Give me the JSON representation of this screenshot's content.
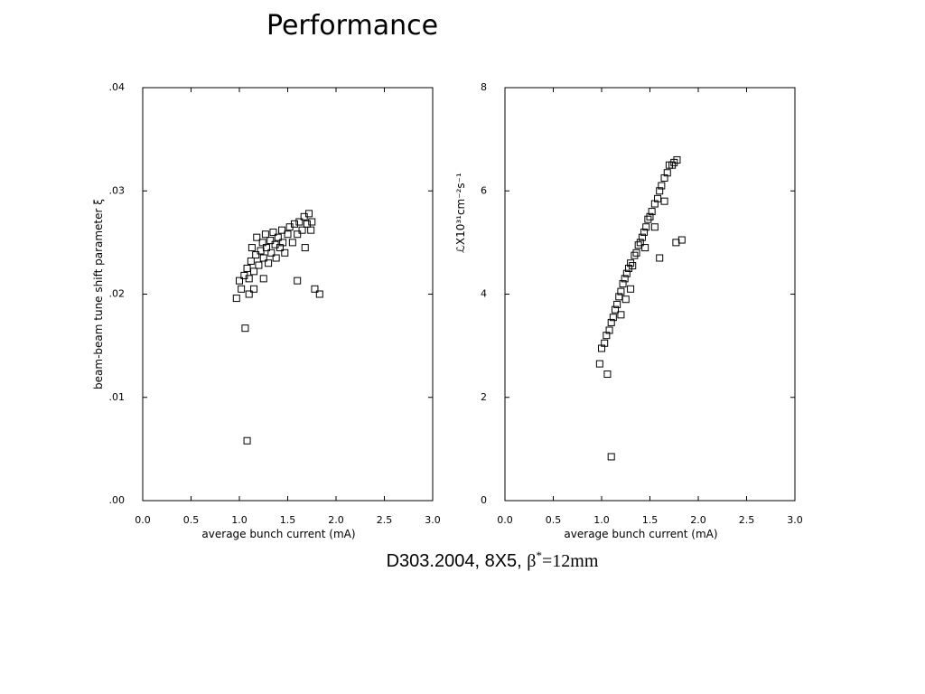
{
  "title": "Performance",
  "caption": {
    "text": "D303.2004, 8X5, ",
    "symbol": "β",
    "sup": "*",
    "rest": "=12mm"
  },
  "chart_data": [
    {
      "type": "scatter",
      "xlabel": "average bunch current (mA)",
      "ylabel": "beam-beam tune shift parameter ξ",
      "xlim": [
        0,
        3
      ],
      "ylim": [
        0,
        0.04
      ],
      "xticks": [
        {
          "value": 0,
          "label": "0.0"
        },
        0.5,
        {
          "value": 1,
          "label": "1.0"
        },
        1.5,
        {
          "value": 2,
          "label": "2.0"
        },
        2.5,
        {
          "value": 3,
          "label": "3.0"
        }
      ],
      "yticks": [
        {
          "value": 0,
          "label": ".00"
        },
        {
          "value": 0.01,
          "label": ".01"
        },
        {
          "value": 0.02,
          "label": ".02"
        },
        {
          "value": 0.03,
          "label": ".03"
        },
        {
          "value": 0.04,
          "label": ".04"
        }
      ],
      "marker": "open-square",
      "color": "#000000",
      "x": [
        1.0,
        1.02,
        1.05,
        1.08,
        1.1,
        1.12,
        1.13,
        1.15,
        1.17,
        1.18,
        1.2,
        1.22,
        1.24,
        1.25,
        1.27,
        1.28,
        1.3,
        1.32,
        1.33,
        1.35,
        1.37,
        1.38,
        1.4,
        1.42,
        1.44,
        1.45,
        1.47,
        1.5,
        1.52,
        1.55,
        1.57,
        1.6,
        1.62,
        1.65,
        1.67,
        1.7,
        1.72,
        1.75,
        1.74,
        1.68,
        1.25,
        1.15,
        1.1,
        1.06,
        1.08,
        1.78,
        1.83,
        0.97,
        1.6
      ],
      "y": [
        0.0213,
        0.0205,
        0.0218,
        0.0225,
        0.0215,
        0.0232,
        0.0245,
        0.0222,
        0.0238,
        0.0255,
        0.0228,
        0.0242,
        0.025,
        0.0235,
        0.0258,
        0.0245,
        0.023,
        0.0252,
        0.024,
        0.026,
        0.0248,
        0.0235,
        0.0255,
        0.0245,
        0.0262,
        0.025,
        0.024,
        0.0258,
        0.0265,
        0.025,
        0.0268,
        0.0258,
        0.027,
        0.0262,
        0.0275,
        0.0268,
        0.0278,
        0.027,
        0.0262,
        0.0245,
        0.0215,
        0.0205,
        0.02,
        0.0167,
        0.0058,
        0.0205,
        0.02,
        0.0196,
        0.0213
      ]
    },
    {
      "type": "scatter",
      "xlabel": "average bunch current (mA)",
      "ylabel": "ℒX10³¹cm⁻²s⁻¹",
      "xlim": [
        0,
        3
      ],
      "ylim": [
        0,
        8
      ],
      "xticks": [
        {
          "value": 0,
          "label": "0.0"
        },
        0.5,
        {
          "value": 1,
          "label": "1.0"
        },
        1.5,
        {
          "value": 2,
          "label": "2.0"
        },
        2.5,
        {
          "value": 3,
          "label": "3.0"
        }
      ],
      "yticks": [
        0,
        2,
        4,
        6,
        8
      ],
      "marker": "open-square",
      "color": "#000000",
      "x": [
        1.0,
        1.03,
        1.05,
        1.08,
        1.1,
        1.12,
        1.14,
        1.16,
        1.18,
        1.2,
        1.22,
        1.24,
        1.26,
        1.28,
        1.3,
        1.32,
        1.34,
        1.36,
        1.38,
        1.4,
        1.42,
        1.44,
        1.46,
        1.48,
        1.5,
        1.52,
        1.55,
        1.58,
        1.6,
        1.62,
        1.65,
        1.68,
        1.7,
        1.73,
        1.75,
        1.78,
        1.25,
        1.3,
        1.2,
        1.45,
        1.55,
        1.65,
        0.98,
        1.06,
        1.1,
        1.77,
        1.83,
        1.6
      ],
      "y": [
        2.95,
        3.05,
        3.2,
        3.3,
        3.45,
        3.55,
        3.7,
        3.8,
        3.95,
        4.05,
        4.2,
        4.3,
        4.4,
        4.5,
        4.6,
        4.55,
        4.75,
        4.8,
        4.95,
        5.0,
        5.1,
        5.2,
        5.3,
        5.45,
        5.5,
        5.6,
        5.75,
        5.85,
        6.0,
        6.1,
        6.25,
        6.35,
        6.5,
        6.5,
        6.55,
        6.6,
        3.9,
        4.1,
        3.6,
        4.9,
        5.3,
        5.8,
        2.65,
        2.45,
        0.85,
        5.0,
        5.05,
        4.7
      ]
    }
  ]
}
